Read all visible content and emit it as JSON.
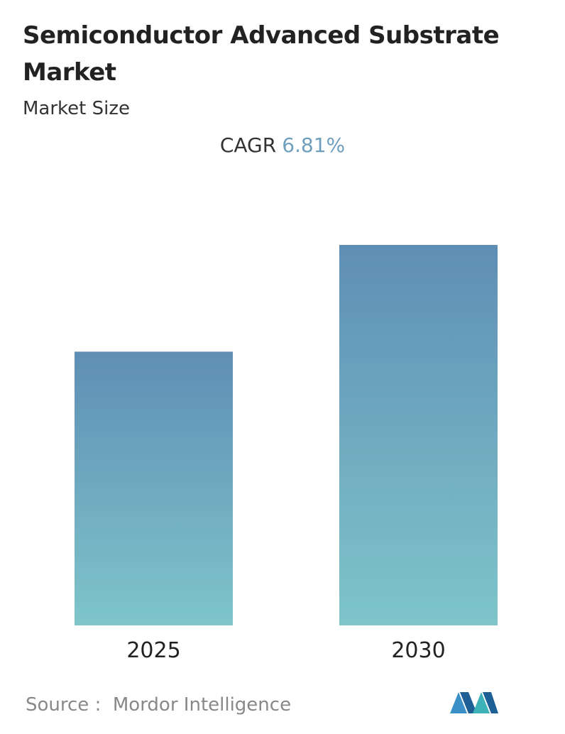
{
  "chart_data": {
    "type": "bar",
    "title": "Semiconductor Advanced Substrate Market",
    "subtitle": "Market Size",
    "cagr": {
      "label": "CAGR",
      "value": 6.81,
      "value_label": "6.81%"
    },
    "categories": [
      "2025",
      "2030"
    ],
    "values": [
      100,
      139
    ],
    "ylim": [
      0,
      139
    ],
    "color": [
      "#5f8eb5",
      "#7ec5ca"
    ],
    "source": {
      "label": "Source :",
      "name": "Mordor Intelligence"
    }
  }
}
